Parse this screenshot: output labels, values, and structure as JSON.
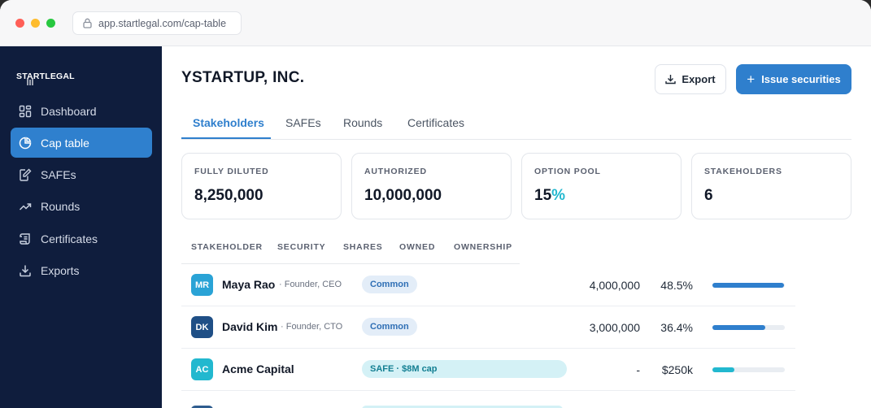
{
  "browser": {
    "url": "app.startlegal.com/cap-table"
  },
  "sidebar": {
    "brand": "STARTLEGAL",
    "items": [
      {
        "label": "Dashboard",
        "icon": "dashboard-icon",
        "active": false
      },
      {
        "label": "Cap table",
        "icon": "pie-chart-icon",
        "active": true
      },
      {
        "label": "SAFEs",
        "icon": "document-edit-icon",
        "active": false
      },
      {
        "label": "Rounds",
        "icon": "trend-up-icon",
        "active": false
      },
      {
        "label": "Certificates",
        "icon": "scroll-icon",
        "active": false
      },
      {
        "label": "Exports",
        "icon": "download-icon",
        "active": false
      }
    ]
  },
  "header": {
    "company": "YSTARTUP, INC.",
    "export_label": "Export",
    "issue_label": "Issue securities"
  },
  "tabs": [
    "Stakeholders",
    "SAFEs",
    "Rounds",
    "Certificates"
  ],
  "stats": [
    {
      "label": "FULLY DILUTED",
      "value": "8,250,000"
    },
    {
      "label": "AUTHORIZED",
      "value": "10,000,000"
    },
    {
      "label": "OPTION POOL",
      "value": "15",
      "suffix": "%"
    },
    {
      "label": "STAKEHOLDERS",
      "value": "6"
    }
  ],
  "table": {
    "columns": [
      "STAKEHOLDER",
      "SECURITY",
      "SHARES",
      "OWNED",
      "OWNERSHIP"
    ],
    "rows": [
      {
        "initials": "MR",
        "name": "Maya Rao",
        "role": "· Founder, CEO",
        "security": "Common",
        "shares": "4,000,000",
        "owned": "48.5%",
        "ownership": 0.985,
        "avatar_color": "#2aa3d6",
        "bar_color": "#2f7fcd"
      },
      {
        "initials": "DK",
        "name": "David Kim",
        "role": "· Founder, CTO",
        "security": "Common",
        "shares": "3,000,000",
        "owned": "36.4%",
        "ownership": 0.73,
        "avatar_color": "#1f4f86",
        "bar_color": "#2f7fcd"
      },
      {
        "initials": "AC",
        "name": "Acme Capital",
        "role": "",
        "security": "SAFE · $8M cap",
        "shares": "-",
        "owned": "$250k",
        "ownership": 0.3,
        "avatar_color": "#22b8cf",
        "bar_color": "#22b8cf"
      }
    ]
  },
  "colors": {
    "accent": "#2f7fcd",
    "sidebar_bg": "#0f1d3d",
    "teal": "#22b8cf"
  }
}
